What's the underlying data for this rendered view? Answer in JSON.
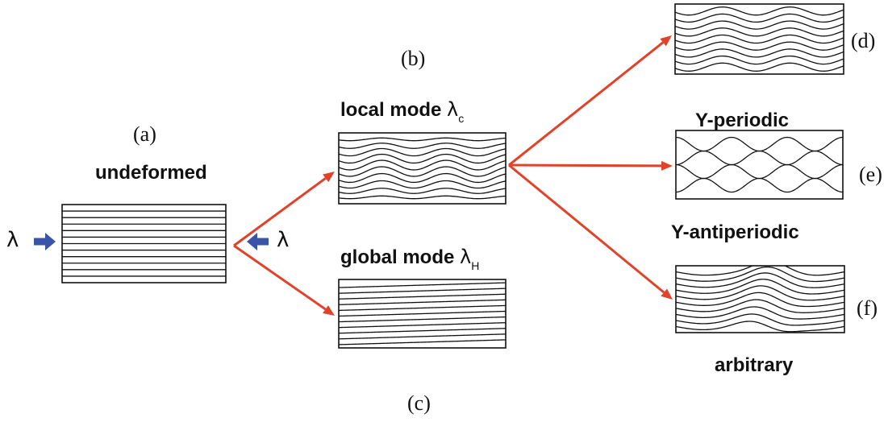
{
  "panels": {
    "a": {
      "tag": "(a)",
      "title": "undeformed"
    },
    "b": {
      "tag": "(b)",
      "title": "local mode ",
      "symbol": "λ",
      "sub": "c"
    },
    "c": {
      "tag": "(c)",
      "title": "global mode ",
      "symbol": "λ",
      "sub": "H"
    },
    "d": {
      "tag": "(d)",
      "title": "Y-periodic"
    },
    "e": {
      "tag": "(e)",
      "title": "Y-antiperiodic"
    },
    "f": {
      "tag": "(f)",
      "title": "arbitrary"
    }
  },
  "load": {
    "left_symbol": "λ",
    "right_symbol": "λ"
  },
  "colors": {
    "arrow": "#e0432a",
    "load_arrow": "#3a55a8",
    "line": "#111111"
  }
}
